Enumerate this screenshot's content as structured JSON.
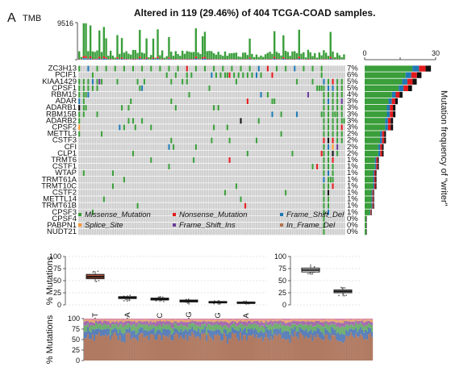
{
  "panel_label": "A",
  "title": "Altered in 119 (29.46%) of 404 TCGA-COAD samples.",
  "colors": {
    "Missense_Mutation": "#3a9e3a",
    "Nonsense_Mutation": "#e31a1c",
    "Frame_Shift_Del": "#1f78b4",
    "Splice_Site": "#ff9933",
    "Frame_Shift_Ins": "#6a3d9a",
    "In_Frame_Del": "#b2734d",
    "Multi_Hit": "#111111",
    "none": "#cfcfcf"
  },
  "chart_data": [
    {
      "type": "heatmap",
      "name": "oncoplot",
      "tmb": {
        "label": "TMB",
        "max_label": "9516",
        "ylim": [
          0,
          9516
        ]
      },
      "genes": [
        "ZC3H13",
        "PCIF1",
        "KIAA1429",
        "CPSF1",
        "RBM15",
        "ADAR",
        "ADARB1",
        "RBM15B",
        "ADARB2",
        "CPSF2",
        "METTL3",
        "CSTF3",
        "CFI",
        "CLP1",
        "TRMT6",
        "CSTF1",
        "WTAP",
        "TRMT61A",
        "TRMT10C",
        "CSTF2",
        "METTL14",
        "TRMT61B",
        "CPSF3",
        "CPSF4",
        "PABPN1",
        "NUDT21"
      ],
      "percentages": [
        "7%",
        "6%",
        "5%",
        "5%",
        "4%",
        "3%",
        "3%",
        "3%",
        "3%",
        "3%",
        "2%",
        "2%",
        "2%",
        "2%",
        "1%",
        "1%",
        "1%",
        "1%",
        "1%",
        "1%",
        "1%",
        "1%",
        "1%",
        "0%",
        "0%",
        "0%"
      ],
      "gene_counts": [
        28,
        24,
        22,
        20,
        16,
        14,
        13,
        13,
        12,
        12,
        9,
        9,
        8,
        8,
        6,
        6,
        5,
        5,
        5,
        4,
        4,
        4,
        3,
        1,
        1,
        1
      ],
      "right_bar": {
        "axis_ticks": [
          "0",
          "30"
        ],
        "xlim": [
          0,
          30
        ],
        "label": "Mutation frequency of \"writer\""
      },
      "legend": [
        "Missense_Mutation",
        "Nonsense_Mutation",
        "Frame_Shift_Del",
        "Splice_Site",
        "Frame_Shift_Ins",
        "In_Frame_Del"
      ]
    },
    {
      "type": "box",
      "name": "transitions",
      "ylabel": "% Mutations",
      "y_ticks": [
        "0",
        "25",
        "50",
        "75",
        "100"
      ],
      "ylim": [
        0,
        100
      ],
      "categories": [
        "C>T",
        "C>A",
        "T>C",
        "C>G",
        "T>G",
        "T>A"
      ],
      "boxes": [
        {
          "q1": 54,
          "median": 58,
          "q3": 63,
          "wmin": 48,
          "wmax": 70
        },
        {
          "q1": 13,
          "median": 15,
          "q3": 17,
          "wmin": 8,
          "wmax": 20
        },
        {
          "q1": 10,
          "median": 12,
          "q3": 14,
          "wmin": 6,
          "wmax": 18
        },
        {
          "q1": 6,
          "median": 8,
          "q3": 10,
          "wmin": 2,
          "wmax": 13
        },
        {
          "q1": 4,
          "median": 5,
          "q3": 7,
          "wmin": 1,
          "wmax": 9
        },
        {
          "q1": 3,
          "median": 4,
          "q3": 6,
          "wmin": 0,
          "wmax": 8
        }
      ],
      "colors": [
        "#b5533c",
        "#2b2b2b",
        "#2b2b2b",
        "#2b2b2b",
        "#2b2b2b",
        "#2b2b2b"
      ]
    },
    {
      "type": "box",
      "name": "ti_tv",
      "y_ticks": [
        "0",
        "25",
        "50",
        "75",
        "100"
      ],
      "ylim": [
        0,
        100
      ],
      "categories": [
        "Ti",
        "Tv"
      ],
      "boxes": [
        {
          "q1": 68,
          "median": 72,
          "q3": 76,
          "wmin": 62,
          "wmax": 84
        },
        {
          "q1": 25,
          "median": 28,
          "q3": 31,
          "wmin": 18,
          "wmax": 36
        }
      ]
    },
    {
      "type": "area",
      "name": "sample_spectrum",
      "ylabel": "% Mutations",
      "y_ticks": [
        "0",
        "25",
        "50",
        "75",
        "100"
      ],
      "ylim": [
        0,
        100
      ],
      "stack_order": [
        "C>T",
        "C>A",
        "T>C",
        "C>G",
        "T>G",
        "T>A"
      ],
      "mean_shares": [
        58,
        15,
        12,
        8,
        4,
        3
      ],
      "colors": [
        "#b07a62",
        "#5a7fb8",
        "#6fae6f",
        "#a66bb0",
        "#e8a86a",
        "#d88aa8"
      ]
    }
  ]
}
